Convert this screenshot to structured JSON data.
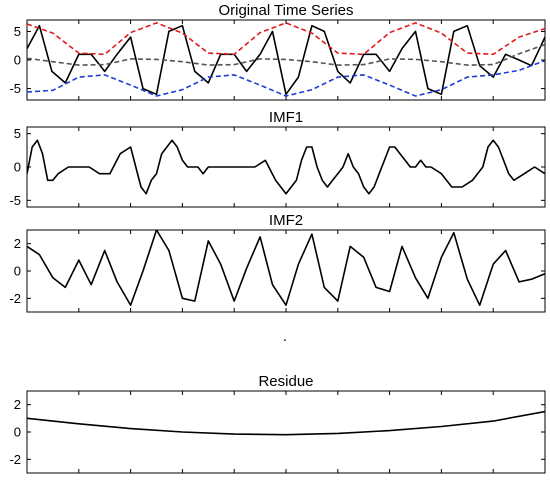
{
  "chart_data": [
    {
      "type": "line",
      "title": "Original Time Series",
      "ylim": [
        -7,
        7
      ],
      "yticks": [
        -5,
        0,
        5
      ],
      "ytick_labels": [
        "-5",
        "0",
        "5"
      ],
      "xlim": [
        0,
        500
      ],
      "xtick_count": 11,
      "grid": false,
      "legend": "none",
      "series": [
        {
          "style": "solid",
          "color": "#000000",
          "x": [
            0,
            12,
            24,
            37,
            50,
            62,
            75,
            87,
            100,
            112,
            125,
            137,
            150,
            162,
            175,
            187,
            200,
            212,
            225,
            237,
            250,
            262,
            275,
            287,
            300,
            312,
            325,
            337,
            350,
            362,
            375,
            387,
            400,
            412,
            425,
            437,
            450,
            462,
            475,
            487,
            500
          ],
          "y": [
            2,
            6,
            -2,
            -4,
            1,
            1,
            -2,
            1,
            4,
            -5,
            -6,
            5,
            6,
            -2,
            -4,
            1,
            1,
            -2,
            1,
            5,
            -6,
            -3,
            6,
            5,
            -2,
            -4,
            1,
            1,
            -2,
            2,
            5,
            -5,
            -6,
            5,
            6,
            -1,
            -3,
            1,
            0,
            -1,
            4
          ]
        },
        {
          "style": "dashed",
          "color": "#e31a1c",
          "x": [
            0,
            25,
            50,
            75,
            100,
            125,
            150,
            175,
            200,
            225,
            250,
            275,
            300,
            325,
            350,
            375,
            400,
            425,
            450,
            475,
            500
          ],
          "y": [
            6.3,
            4.7,
            1.2,
            1.0,
            4.8,
            6.5,
            4.7,
            1.2,
            1.0,
            4.8,
            6.5,
            4.7,
            1.2,
            1.0,
            4.8,
            6.5,
            4.7,
            1.2,
            1.0,
            4.0,
            5.5
          ]
        },
        {
          "style": "dashed",
          "color": "#1f3bd8",
          "x": [
            0,
            25,
            50,
            75,
            100,
            125,
            150,
            175,
            200,
            225,
            250,
            275,
            300,
            325,
            350,
            375,
            400,
            425,
            450,
            475,
            500
          ],
          "y": [
            -5.6,
            -5.3,
            -3.0,
            -2.6,
            -4.4,
            -6.3,
            -5.2,
            -3.0,
            -2.6,
            -4.4,
            -6.3,
            -5.2,
            -3.0,
            -2.6,
            -4.4,
            -6.3,
            -5.2,
            -3.0,
            -2.6,
            -1.8,
            -0.1
          ]
        },
        {
          "style": "dashed",
          "color": "#555555",
          "x": [
            0,
            25,
            50,
            75,
            100,
            125,
            150,
            175,
            200,
            225,
            250,
            275,
            300,
            325,
            350,
            375,
            400,
            425,
            450,
            475,
            500
          ],
          "y": [
            0.3,
            -0.3,
            -0.9,
            -0.8,
            0.2,
            0.1,
            -0.3,
            -0.9,
            -0.8,
            0.2,
            0.1,
            -0.3,
            -0.9,
            -0.8,
            0.2,
            0.1,
            -0.3,
            -0.9,
            -0.8,
            1.1,
            2.7
          ]
        }
      ]
    },
    {
      "type": "line",
      "title": "IMF1",
      "ylim": [
        -6,
        6
      ],
      "yticks": [
        -5,
        0,
        5
      ],
      "ytick_labels": [
        "-5",
        "0",
        "5"
      ],
      "xlim": [
        0,
        500
      ],
      "xtick_count": 11,
      "grid": false,
      "legend": "none",
      "series": [
        {
          "style": "solid",
          "color": "#000000",
          "x": [
            0,
            5,
            10,
            15,
            20,
            25,
            30,
            40,
            50,
            60,
            70,
            80,
            90,
            100,
            105,
            110,
            115,
            120,
            125,
            130,
            135,
            140,
            145,
            150,
            155,
            160,
            165,
            170,
            175,
            180,
            185,
            190,
            200,
            210,
            220,
            230,
            240,
            250,
            255,
            260,
            265,
            270,
            275,
            280,
            285,
            290,
            295,
            300,
            305,
            310,
            315,
            320,
            325,
            330,
            335,
            340,
            350,
            355,
            360,
            365,
            370,
            375,
            380,
            385,
            390,
            400,
            410,
            420,
            430,
            440,
            445,
            450,
            455,
            460,
            465,
            470,
            480,
            490,
            500
          ],
          "y": [
            -1,
            3,
            4,
            2,
            -2,
            -2,
            -1,
            0,
            0,
            0,
            -1,
            -1,
            2,
            3,
            0,
            -3,
            -4,
            -2,
            -1,
            2,
            3,
            4,
            3,
            1,
            0,
            0,
            0,
            -1,
            0,
            0,
            0,
            0,
            0,
            0,
            0,
            1,
            -2,
            -4,
            -3,
            -2,
            1,
            3,
            3,
            0,
            -2,
            -3,
            -2,
            -1,
            0,
            2,
            0,
            -1,
            -3,
            -4,
            -3,
            -1,
            3,
            3,
            2,
            1,
            0,
            0,
            1,
            0,
            0,
            -1,
            -3,
            -3,
            -2,
            0,
            3,
            4,
            3,
            1,
            -1,
            -2,
            -1,
            0,
            -1
          ]
        }
      ]
    },
    {
      "type": "line",
      "title": "IMF2",
      "ylim": [
        -3,
        3
      ],
      "yticks": [
        -2,
        0,
        2
      ],
      "ytick_labels": [
        "-2",
        "0",
        "2"
      ],
      "xlim": [
        0,
        500
      ],
      "xtick_count": 11,
      "grid": false,
      "legend": "none",
      "series": [
        {
          "style": "solid",
          "color": "#000000",
          "x": [
            0,
            12,
            25,
            37,
            50,
            62,
            75,
            87,
            100,
            112,
            125,
            137,
            150,
            162,
            175,
            187,
            200,
            212,
            225,
            237,
            250,
            262,
            275,
            287,
            300,
            312,
            325,
            337,
            350,
            362,
            375,
            387,
            400,
            412,
            425,
            437,
            450,
            462,
            475,
            487,
            500
          ],
          "y": [
            1.8,
            1.2,
            -0.5,
            -1.2,
            0.8,
            -1.0,
            1.5,
            -0.8,
            -2.5,
            0,
            3,
            1.5,
            -2,
            -2.2,
            2.2,
            0.5,
            -2.2,
            0.2,
            2.5,
            -1,
            -2.5,
            0.5,
            2.7,
            -1.2,
            -2.2,
            1.8,
            1,
            -1.2,
            -1.5,
            1.8,
            -0.5,
            -2,
            1,
            2.8,
            -0.6,
            -2.5,
            0.5,
            1.5,
            -0.8,
            -0.6,
            -0.2
          ]
        }
      ]
    },
    {
      "type": "line",
      "title": "Residue",
      "ylim": [
        -3,
        3
      ],
      "yticks": [
        -2,
        0,
        2
      ],
      "ytick_labels": [
        "-2",
        "0",
        "2"
      ],
      "xlim": [
        0,
        500
      ],
      "xtick_count": 11,
      "grid": false,
      "legend": "none",
      "series": [
        {
          "style": "solid",
          "color": "#000000",
          "x": [
            0,
            50,
            100,
            150,
            200,
            250,
            300,
            350,
            400,
            450,
            500
          ],
          "y": [
            1.0,
            0.6,
            0.25,
            0.0,
            -0.15,
            -0.2,
            -0.1,
            0.1,
            0.4,
            0.8,
            1.5
          ]
        }
      ]
    }
  ],
  "stray_mark": "."
}
